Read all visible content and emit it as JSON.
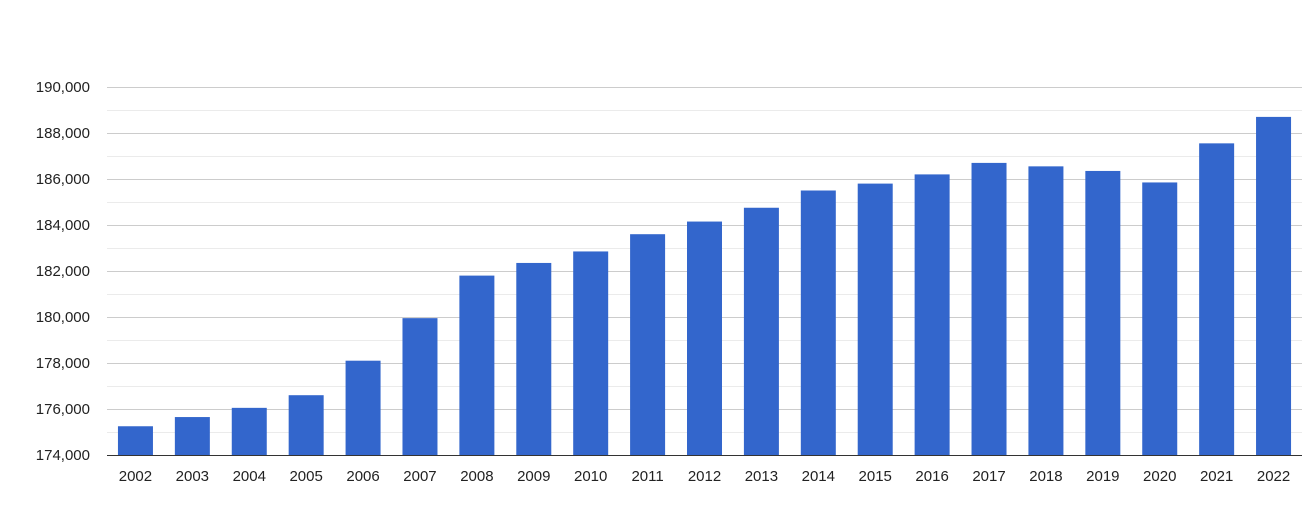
{
  "chart_data": {
    "type": "bar",
    "title": "",
    "xlabel": "",
    "ylabel": "",
    "categories": [
      "2002",
      "2003",
      "2004",
      "2005",
      "2006",
      "2007",
      "2008",
      "2009",
      "2010",
      "2011",
      "2012",
      "2013",
      "2014",
      "2015",
      "2016",
      "2017",
      "2018",
      "2019",
      "2020",
      "2021",
      "2022"
    ],
    "values": [
      175250,
      175650,
      176050,
      176600,
      178100,
      179950,
      181800,
      182350,
      182850,
      183600,
      184150,
      184750,
      185500,
      185800,
      186200,
      186700,
      186550,
      186350,
      185850,
      187550,
      188700
    ],
    "ylim": [
      174000,
      190000
    ],
    "yticks": [
      174000,
      176000,
      178000,
      180000,
      182000,
      184000,
      186000,
      188000,
      190000
    ],
    "ytick_labels": [
      "174,000",
      "176,000",
      "178,000",
      "180,000",
      "182,000",
      "184,000",
      "186,000",
      "188,000",
      "190,000"
    ],
    "grid": true,
    "legend": "none",
    "colors": {
      "bar": "#3366cc",
      "major_grid": "#cccccc",
      "minor_grid": "#ebebeb",
      "text": "#222222"
    }
  }
}
